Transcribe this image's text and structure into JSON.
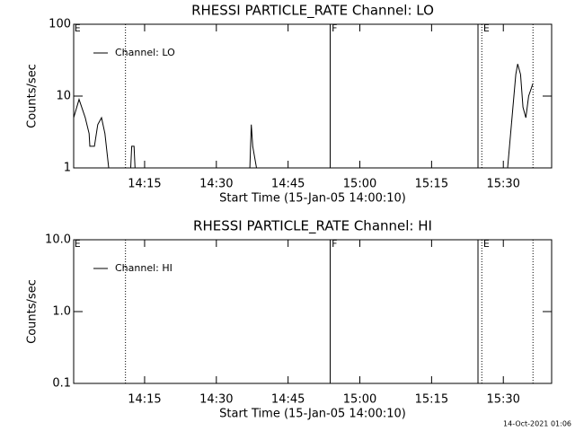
{
  "chart_data": [
    {
      "type": "line",
      "title": "RHESSI PARTICLE_RATE Channel: LO",
      "xlabel": "Start Time (15-Jan-05 14:00:10)",
      "ylabel": "Counts/sec",
      "xlim": [
        0.17,
        100.1
      ],
      "xticks": [
        {
          "value": 15,
          "label": "14:15"
        },
        {
          "value": 30,
          "label": "14:30"
        },
        {
          "value": 45,
          "label": "14:45"
        },
        {
          "value": 60,
          "label": "15:00"
        },
        {
          "value": 75,
          "label": "15:15"
        },
        {
          "value": 90,
          "label": "15:30"
        }
      ],
      "ylim": [
        1,
        100
      ],
      "yticks": [
        1,
        10,
        100
      ],
      "log_y": true,
      "series": [
        {
          "name": "Channel: LO",
          "color": "#000000",
          "x": [
            0.17,
            1.3,
            2.6,
            3.4,
            3.55,
            4.5,
            5.2,
            6.0,
            6.7,
            7.5,
            null,
            12.1,
            12.3,
            12.8,
            13.0,
            null,
            37.0,
            37.3,
            37.6,
            38.4,
            null,
            90.9,
            92.6,
            93.0,
            93.6,
            94.1,
            94.7,
            95.3,
            96.2
          ],
          "values": [
            5,
            9,
            5,
            3,
            2,
            2,
            4,
            5,
            3,
            1,
            null,
            1,
            2,
            2,
            1,
            null,
            1,
            4,
            2,
            1,
            null,
            1,
            20,
            28,
            20,
            7,
            5,
            10,
            15
          ]
        }
      ],
      "vlines": [
        {
          "x": 11.0,
          "style": "dotted"
        },
        {
          "x": 53.8,
          "style": "solid"
        },
        {
          "x": 84.7,
          "style": "solid"
        },
        {
          "x": 85.5,
          "style": "dotted"
        },
        {
          "x": 96.2,
          "style": "dotted"
        }
      ],
      "annotations": [
        {
          "text": "E",
          "x": 0.3
        },
        {
          "text": "F",
          "x": 54.1
        },
        {
          "text": "E",
          "x": 85.8
        }
      ]
    },
    {
      "type": "line",
      "title": "RHESSI PARTICLE_RATE Channel: HI",
      "xlabel": "Start Time (15-Jan-05 14:00:10)",
      "ylabel": "Counts/sec",
      "xlim": [
        0.17,
        100.1
      ],
      "xticks": [
        {
          "value": 15,
          "label": "14:15"
        },
        {
          "value": 30,
          "label": "14:30"
        },
        {
          "value": 45,
          "label": "14:45"
        },
        {
          "value": 60,
          "label": "15:00"
        },
        {
          "value": 75,
          "label": "15:15"
        },
        {
          "value": 90,
          "label": "15:30"
        }
      ],
      "ylim": [
        0.1,
        10
      ],
      "yticks": [
        0.1,
        {
          "value": 1,
          "label": "1.0"
        },
        {
          "value": 10,
          "label": "10.0"
        }
      ],
      "log_y": true,
      "series": [
        {
          "name": "Channel: HI",
          "color": "#000000",
          "x": [],
          "values": []
        }
      ],
      "vlines": [
        {
          "x": 11.0,
          "style": "dotted"
        },
        {
          "x": 53.8,
          "style": "solid"
        },
        {
          "x": 84.7,
          "style": "solid"
        },
        {
          "x": 85.5,
          "style": "dotted"
        },
        {
          "x": 96.2,
          "style": "dotted"
        }
      ],
      "annotations": [
        {
          "text": "E",
          "x": 0.3
        },
        {
          "text": "F",
          "x": 54.1
        },
        {
          "text": "E",
          "x": 85.8
        }
      ]
    }
  ],
  "footer": "14-Oct-2021 01:06"
}
